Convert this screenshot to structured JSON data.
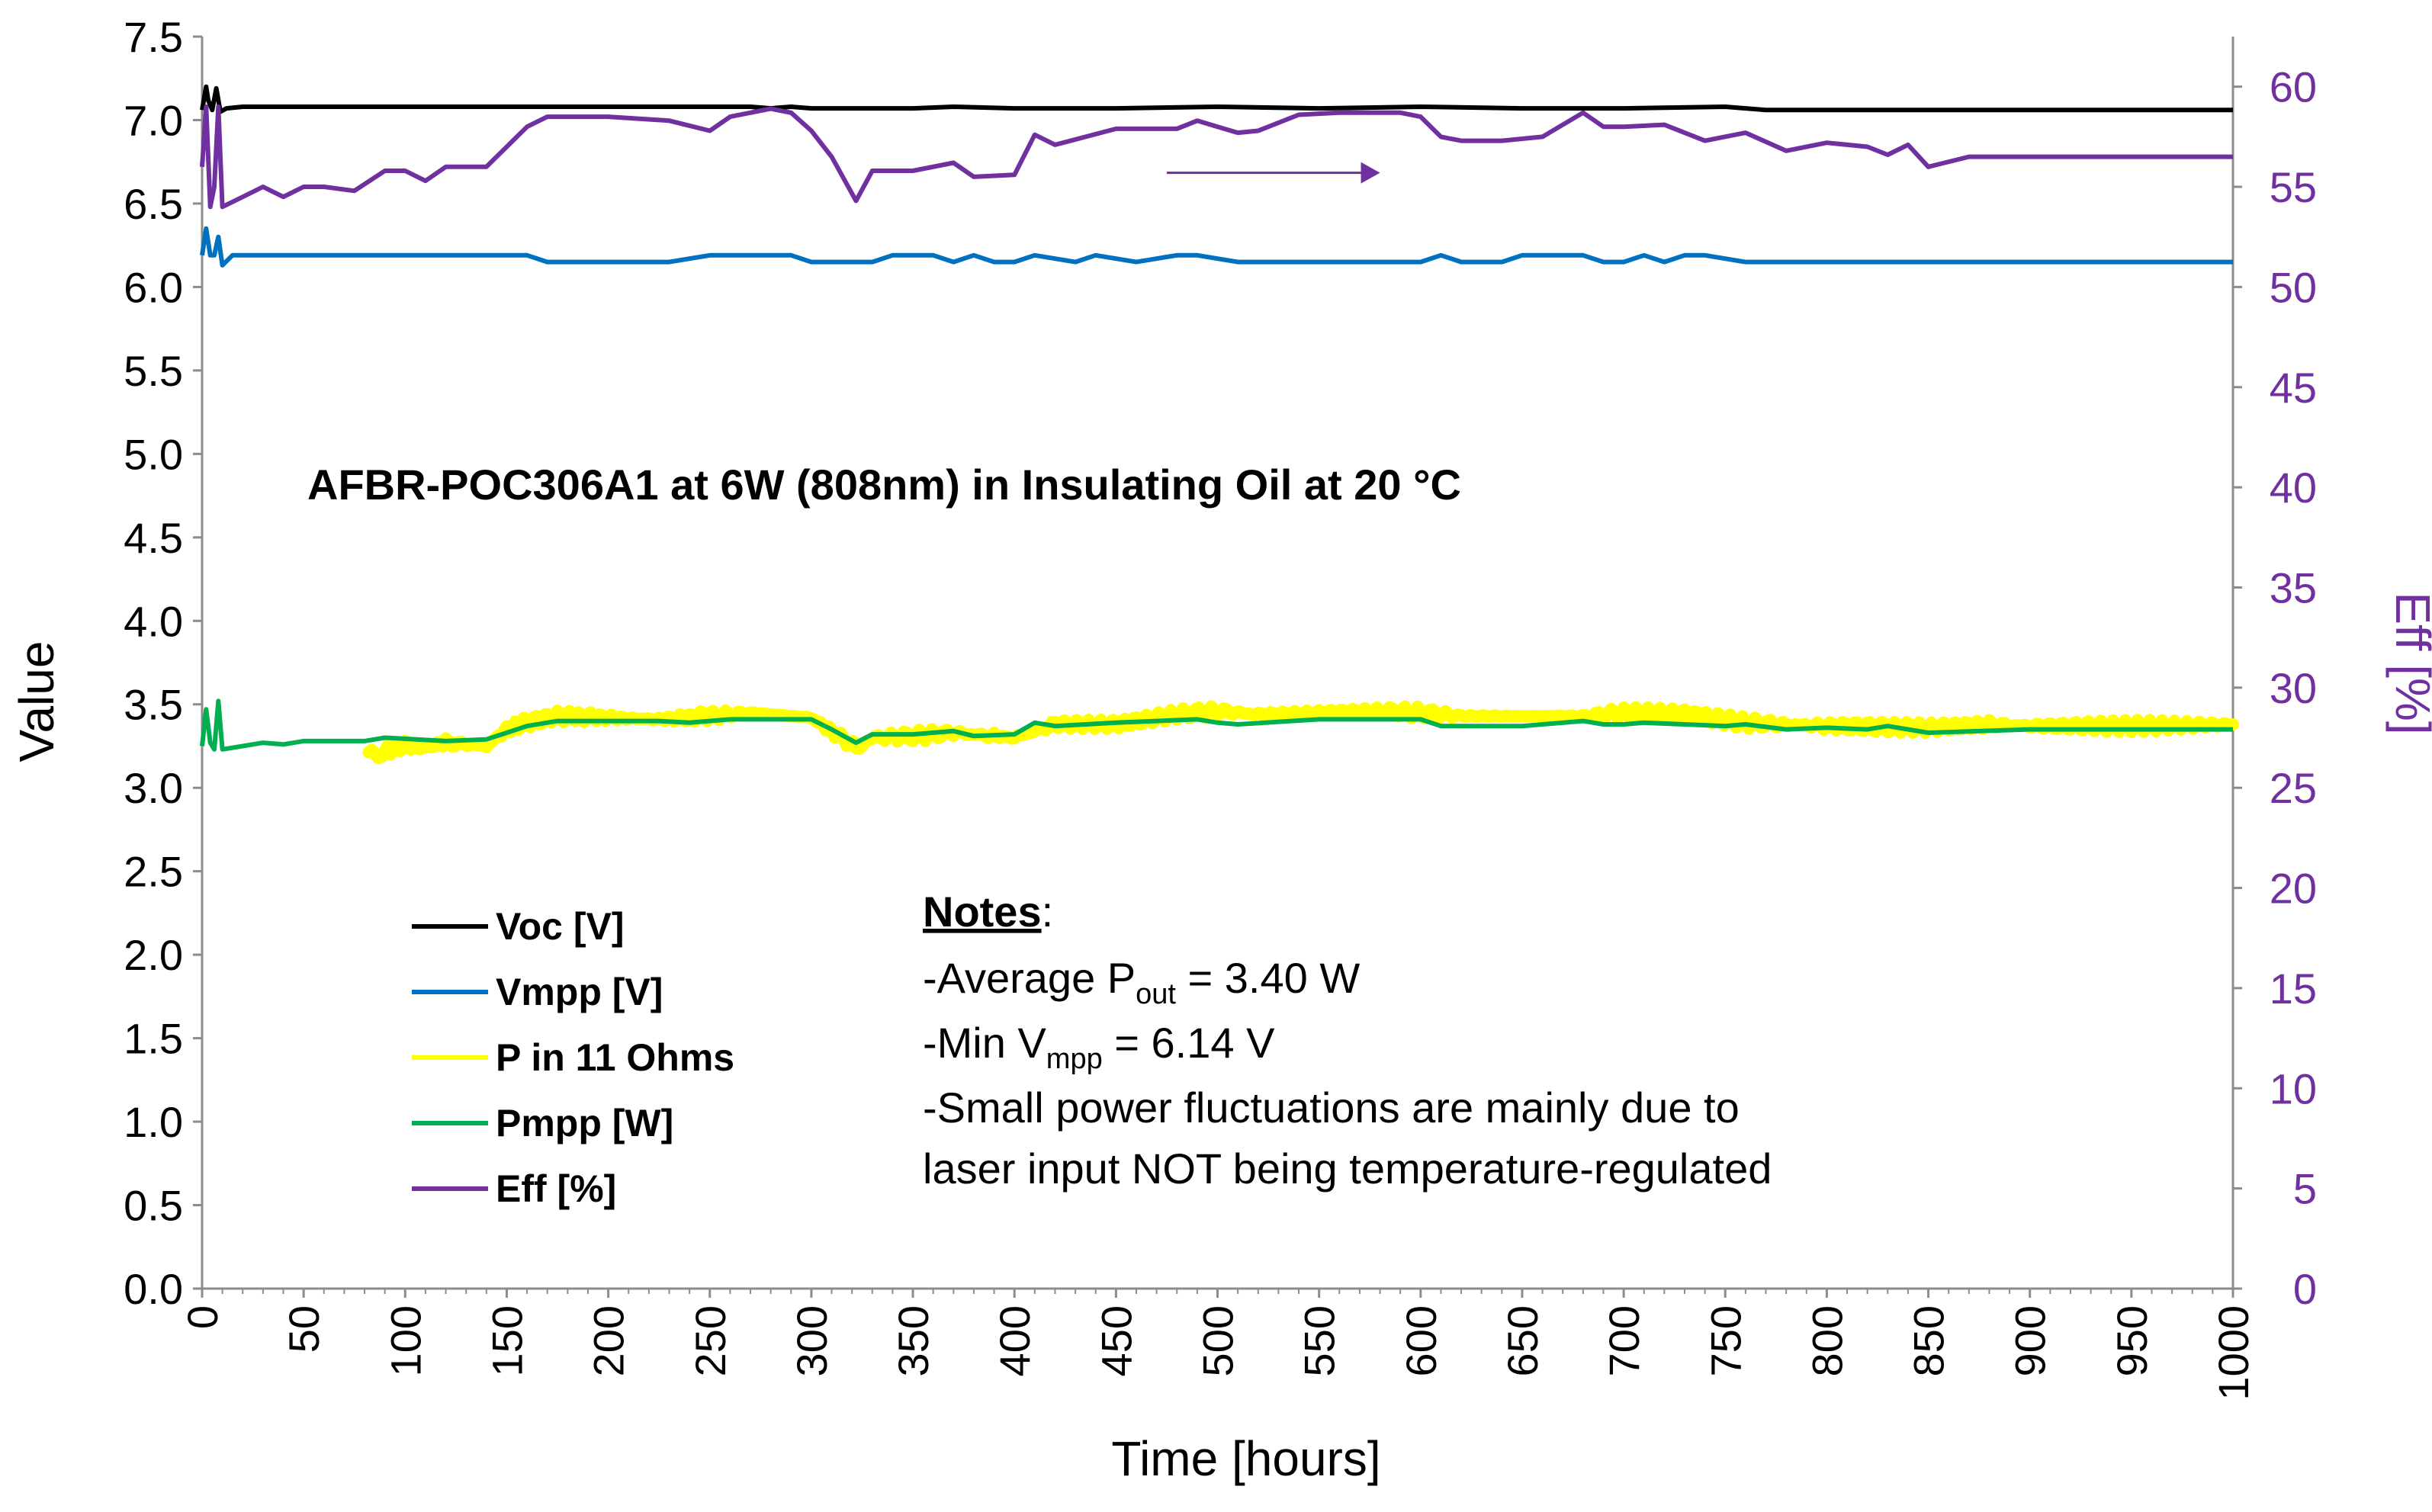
{
  "chart_data": {
    "type": "line",
    "title": "",
    "xlabel": "Time [hours]",
    "ylabel": "Value",
    "y2label": "Eff [%]",
    "xlim": [
      0,
      1000
    ],
    "ylim": [
      0,
      7.5
    ],
    "y2lim": [
      0,
      62.5
    ],
    "x_ticks": [
      "0",
      "50",
      "100",
      "150",
      "200",
      "250",
      "300",
      "350",
      "400",
      "450",
      "500",
      "550",
      "600",
      "650",
      "700",
      "750",
      "800",
      "850",
      "900",
      "950",
      "1000"
    ],
    "y_ticks": [
      "0.0",
      "0.5",
      "1.0",
      "1.5",
      "2.0",
      "2.5",
      "3.0",
      "3.5",
      "4.0",
      "4.5",
      "5.0",
      "5.5",
      "6.0",
      "6.5",
      "7.0",
      "7.5"
    ],
    "y2_ticks": [
      "0",
      "5",
      "10",
      "15",
      "20",
      "25",
      "30",
      "35",
      "40",
      "45",
      "50",
      "55",
      "60"
    ],
    "grid": false,
    "legend_position": "bottom-left",
    "colors": {
      "voc": "#000000",
      "vmpp": "#0070c0",
      "p11": "#ffff00",
      "pmpp": "#00b050",
      "eff": "#7030a0"
    },
    "series": [
      {
        "name": "Voc [V]",
        "axis": "left",
        "x": [
          0,
          2,
          3,
          5,
          7,
          9,
          12,
          20,
          50,
          100,
          150,
          200,
          250,
          270,
          280,
          290,
          300,
          320,
          350,
          370,
          400,
          450,
          500,
          550,
          600,
          650,
          700,
          750,
          770,
          800,
          850,
          900,
          950,
          1000
        ],
        "values": [
          7.06,
          7.2,
          7.12,
          7.06,
          7.19,
          7.05,
          7.07,
          7.08,
          7.08,
          7.08,
          7.08,
          7.08,
          7.08,
          7.08,
          7.07,
          7.08,
          7.07,
          7.07,
          7.07,
          7.08,
          7.07,
          7.07,
          7.08,
          7.07,
          7.08,
          7.07,
          7.07,
          7.08,
          7.06,
          7.06,
          7.06,
          7.06,
          7.06,
          7.06
        ]
      },
      {
        "name": "Vmpp [V]",
        "axis": "left",
        "x": [
          0,
          2,
          4,
          6,
          8,
          10,
          15,
          50,
          100,
          150,
          160,
          170,
          200,
          230,
          250,
          290,
          300,
          330,
          340,
          360,
          370,
          380,
          390,
          400,
          410,
          420,
          430,
          440,
          450,
          460,
          470,
          480,
          490,
          500,
          510,
          600,
          610,
          620,
          640,
          650,
          660,
          680,
          690,
          700,
          710,
          720,
          730,
          740,
          760,
          770,
          800,
          850,
          900,
          950,
          1000
        ],
        "values": [
          6.19,
          6.35,
          6.19,
          6.19,
          6.3,
          6.13,
          6.19,
          6.19,
          6.19,
          6.19,
          6.19,
          6.15,
          6.15,
          6.15,
          6.19,
          6.19,
          6.15,
          6.15,
          6.19,
          6.19,
          6.15,
          6.19,
          6.15,
          6.15,
          6.19,
          6.17,
          6.15,
          6.19,
          6.17,
          6.15,
          6.17,
          6.19,
          6.19,
          6.17,
          6.15,
          6.15,
          6.19,
          6.15,
          6.15,
          6.19,
          6.19,
          6.19,
          6.15,
          6.15,
          6.19,
          6.15,
          6.19,
          6.19,
          6.15,
          6.15,
          6.15,
          6.15,
          6.15,
          6.15,
          6.15
        ]
      },
      {
        "name": "P in 11 Ohms",
        "axis": "left",
        "x": [
          82,
          90,
          100,
          110,
          120,
          140,
          150,
          160,
          175,
          200,
          225,
          250,
          270,
          300,
          310,
          322,
          330,
          350,
          370,
          390,
          400,
          420,
          450,
          480,
          500,
          520,
          550,
          580,
          600,
          620,
          650,
          680,
          700,
          730,
          760,
          780,
          800,
          850,
          880,
          900,
          950,
          1000
        ],
        "values": [
          3.19,
          3.22,
          3.25,
          3.24,
          3.27,
          3.25,
          3.35,
          3.39,
          3.43,
          3.42,
          3.41,
          3.43,
          3.45,
          3.42,
          3.34,
          3.24,
          3.3,
          3.31,
          3.33,
          3.31,
          3.3,
          3.38,
          3.38,
          3.44,
          3.46,
          3.44,
          3.45,
          3.46,
          3.45,
          3.43,
          3.43,
          3.43,
          3.45,
          3.44,
          3.39,
          3.38,
          3.37,
          3.36,
          3.38,
          3.37,
          3.37,
          3.38
        ]
      },
      {
        "name": "Pmpp [W]",
        "axis": "left",
        "x": [
          0,
          2,
          4,
          6,
          8,
          10,
          20,
          30,
          40,
          50,
          80,
          90,
          120,
          140,
          150,
          160,
          175,
          200,
          225,
          240,
          260,
          280,
          290,
          300,
          310,
          322,
          330,
          350,
          370,
          380,
          400,
          410,
          420,
          450,
          470,
          490,
          500,
          510,
          550,
          600,
          610,
          650,
          660,
          680,
          690,
          700,
          710,
          750,
          760,
          780,
          800,
          820,
          830,
          850,
          900,
          950,
          1000
        ],
        "values": [
          3.25,
          3.47,
          3.27,
          3.23,
          3.52,
          3.23,
          3.25,
          3.27,
          3.26,
          3.28,
          3.28,
          3.3,
          3.28,
          3.29,
          3.33,
          3.37,
          3.4,
          3.4,
          3.4,
          3.39,
          3.41,
          3.41,
          3.41,
          3.41,
          3.35,
          3.27,
          3.32,
          3.32,
          3.34,
          3.31,
          3.32,
          3.39,
          3.37,
          3.39,
          3.4,
          3.41,
          3.39,
          3.38,
          3.41,
          3.41,
          3.37,
          3.37,
          3.38,
          3.4,
          3.38,
          3.38,
          3.39,
          3.37,
          3.38,
          3.35,
          3.36,
          3.35,
          3.37,
          3.33,
          3.35,
          3.35,
          3.35
        ]
      },
      {
        "name": "Eff [%]",
        "axis": "right",
        "x": [
          0,
          2,
          4,
          6,
          8,
          10,
          20,
          30,
          40,
          50,
          60,
          75,
          90,
          100,
          110,
          120,
          140,
          160,
          170,
          200,
          230,
          250,
          260,
          280,
          290,
          300,
          310,
          322,
          330,
          350,
          370,
          380,
          400,
          410,
          420,
          450,
          480,
          490,
          500,
          510,
          520,
          540,
          560,
          590,
          600,
          610,
          620,
          640,
          660,
          680,
          690,
          700,
          720,
          730,
          740,
          760,
          780,
          800,
          820,
          830,
          840,
          850,
          870,
          900,
          950,
          1000
        ],
        "values": [
          56,
          59,
          54,
          55,
          59,
          54,
          54.5,
          55,
          54.5,
          55,
          55,
          54.8,
          55.8,
          55.8,
          55.3,
          56,
          56,
          58,
          58.5,
          58.5,
          58.3,
          57.8,
          58.5,
          58.9,
          58.7,
          57.8,
          56.5,
          54.3,
          55.8,
          55.8,
          56.2,
          55.5,
          55.6,
          57.6,
          57.1,
          57.9,
          57.9,
          58.3,
          58,
          57.7,
          57.8,
          58.6,
          58.7,
          58.7,
          58.5,
          57.5,
          57.3,
          57.3,
          57.5,
          58.7,
          58,
          58,
          58.1,
          57.7,
          57.3,
          57.7,
          56.8,
          57.2,
          57,
          56.6,
          57.1,
          56,
          56.5,
          56.5,
          56.5,
          56.5
        ]
      }
    ],
    "annotation": {
      "text": "AFBR-POC306A1 at 6W (808nm) in Insulating Oil at 20 °C",
      "arrow": {
        "direction": "right",
        "x": [
          475,
          580
        ],
        "y2": 55.7
      }
    },
    "notes": {
      "heading": "Notes",
      "heading_suffix": ":",
      "line1_prefix": "-Average P",
      "line1_sub": "out",
      "line1_suffix": " = 3.40 W",
      "line2_prefix": "-Min V",
      "line2_sub": "mpp",
      "line2_suffix": " = 6.14 V",
      "line3": "-Small power fluctuations are mainly due to",
      "line4": "laser input NOT being temperature-regulated"
    }
  }
}
